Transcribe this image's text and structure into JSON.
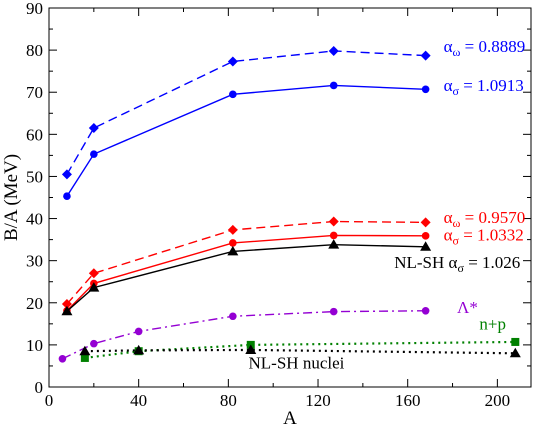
{
  "chart_data": {
    "type": "line",
    "xlabel": "A",
    "ylabel": "B/A (MeV)",
    "xlim": [
      0,
      215
    ],
    "ylim": [
      0,
      90
    ],
    "xticks": [
      "0",
      "40",
      "80",
      "120",
      "160",
      "200"
    ],
    "yticks": [
      "0",
      "10",
      "20",
      "30",
      "40",
      "50",
      "60",
      "70",
      "80",
      "90"
    ],
    "grid": false,
    "series": [
      {
        "color": "#0000ff",
        "marker": "diamond",
        "line": "dashed",
        "x": [
          8,
          20,
          82,
          127,
          168
        ],
        "y": [
          50.5,
          61.5,
          77.3,
          79.8,
          78.7
        ]
      },
      {
        "color": "#0000ff",
        "marker": "circle",
        "line": "solid",
        "x": [
          8,
          20,
          82,
          127,
          168
        ],
        "y": [
          45.3,
          55.3,
          69.5,
          71.6,
          70.7
        ]
      },
      {
        "color": "#ff0000",
        "marker": "diamond",
        "line": "dashed",
        "x": [
          8,
          20,
          82,
          127,
          168
        ],
        "y": [
          19.7,
          27.0,
          37.3,
          39.3,
          39.1
        ]
      },
      {
        "color": "#ff0000",
        "marker": "circle",
        "line": "solid",
        "x": [
          8,
          20,
          82,
          127,
          168
        ],
        "y": [
          18.1,
          24.6,
          34.2,
          36.0,
          35.9
        ]
      },
      {
        "color": "#000000",
        "marker": "triangle",
        "line": "solid",
        "x": [
          8,
          20,
          82,
          127,
          168
        ],
        "y": [
          18.0,
          23.6,
          32.2,
          33.8,
          33.3
        ]
      },
      {
        "color": "#9400d3",
        "marker": "circle",
        "line": "dashdot",
        "x": [
          6,
          20,
          40,
          82,
          127,
          168
        ],
        "y": [
          6.7,
          10.3,
          13.2,
          16.8,
          17.9,
          18.1
        ]
      },
      {
        "color": "#008000",
        "marker": "square",
        "line": "dotted",
        "x": [
          16,
          40,
          90,
          208
        ],
        "y": [
          6.9,
          8.5,
          10.0,
          10.7
        ]
      },
      {
        "color": "#000000",
        "marker": "triangle",
        "line": "dotted",
        "x": [
          16,
          40,
          90,
          208
        ],
        "y": [
          8.5,
          8.7,
          8.8,
          8.0
        ]
      }
    ],
    "annotations": [
      {
        "greek": "α",
        "sub": "ω",
        "rest": " = 0.8889",
        "color": "#0000ff",
        "x": 176,
        "y": 79.5
      },
      {
        "greek": "α",
        "sub": "σ",
        "rest": " = 1.0913",
        "color": "#0000ff",
        "x": 176,
        "y": 70.3
      },
      {
        "greek": "α",
        "sub": "ω",
        "rest": " = 0.9570",
        "color": "#ff0000",
        "x": 176,
        "y": 39.0
      },
      {
        "greek": "α",
        "sub": "σ",
        "rest": " = 1.0332",
        "color": "#ff0000",
        "x": 176,
        "y": 34.8
      },
      {
        "text": "NL-SH  ",
        "greek": "α",
        "sub": "σ",
        "rest": " = 1.026",
        "color": "#000000",
        "x": 154,
        "y": 28.2
      },
      {
        "text": "Λ*",
        "color": "#9400d3",
        "x": 182,
        "y": 17.6
      },
      {
        "text": "n+p",
        "color": "#008000",
        "x": 192,
        "y": 13.7
      },
      {
        "text": "NL-SH  nuclei",
        "color": "#000000",
        "x": 89,
        "y": 4.4
      }
    ]
  }
}
